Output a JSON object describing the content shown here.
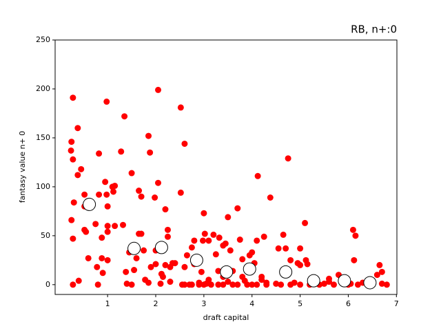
{
  "chart_data": {
    "type": "scatter",
    "title": "RB, n+:0",
    "xlabel": "draft capital",
    "ylabel": "fantasy value n+ 0",
    "xlim": [
      -0.09,
      7.01
    ],
    "ylim": [
      -10,
      250
    ],
    "xticks": [
      1,
      2,
      3,
      4,
      5,
      6,
      7
    ],
    "yticks": [
      0,
      50,
      100,
      150,
      200,
      250
    ],
    "series": [
      {
        "color": "#ff0000",
        "facecolor": "#ff0000",
        "x": [
          0.28,
          0.25,
          0.24,
          0.28,
          0.3,
          0.25,
          0.28,
          0.28,
          0.38,
          0.38,
          0.45,
          0.4,
          0.52,
          0.52,
          0.52,
          0.55,
          0.6,
          0.75,
          0.78,
          0.8,
          0.82,
          0.82,
          0.88,
          0.88,
          0.9,
          0.95,
          0.98,
          0.98,
          1.0,
          1.0,
          1.0,
          1.0,
          1.1,
          1.12,
          1.15,
          1.15,
          1.28,
          1.32,
          1.35,
          1.38,
          1.4,
          1.45,
          1.5,
          1.5,
          1.55,
          1.6,
          1.65,
          1.65,
          1.7,
          1.7,
          1.75,
          1.78,
          1.85,
          1.85,
          1.88,
          1.9,
          1.98,
          2.0,
          2.0,
          2.05,
          2.05,
          2.1,
          2.12,
          2.15,
          2.2,
          2.2,
          2.25,
          2.25,
          2.3,
          2.3,
          2.35,
          2.4,
          2.52,
          2.52,
          2.55,
          2.6,
          2.6,
          2.65,
          2.7,
          2.75,
          2.8,
          2.8,
          2.9,
          2.95,
          2.98,
          3.0,
          3.02,
          3.05,
          3.1,
          3.2,
          3.25,
          3.3,
          3.32,
          3.4,
          3.45,
          3.5,
          3.55,
          3.6,
          3.7,
          3.75,
          3.8,
          3.85,
          3.95,
          4.0,
          4.05,
          4.1,
          4.12,
          4.2,
          4.25,
          4.38,
          4.5,
          4.55,
          4.65,
          4.7,
          4.75,
          4.8,
          4.88,
          4.95,
          5.0,
          5.0,
          5.1,
          5.12,
          5.15,
          5.3,
          5.5,
          5.6,
          5.8,
          5.9,
          6.1,
          6.15,
          6.12,
          6.2,
          6.3,
          6.4,
          6.6,
          6.65,
          6.7,
          6.7,
          2.6,
          2.75,
          2.9,
          3.0,
          3.15,
          3.3,
          3.4,
          3.6,
          3.7,
          3.9,
          4.0,
          4.1,
          4.3,
          4.6,
          4.8,
          5.0,
          5.2,
          5.4,
          5.7,
          6.0,
          6.5,
          6.8,
          3.1,
          3.4,
          3.5,
          3.8,
          4.2,
          4.3,
          5.6,
          6.05
        ],
        "values": [
          191,
          146,
          137,
          128,
          84,
          66,
          47,
          0,
          160,
          112,
          118,
          4,
          92,
          80,
          56,
          54,
          27,
          62,
          18,
          0,
          134,
          92,
          48,
          27,
          12,
          105,
          187,
          92,
          80,
          60,
          54,
          25,
          100,
          95,
          101,
          60,
          136,
          61,
          172,
          13,
          1,
          33,
          114,
          0,
          15,
          27,
          96,
          52,
          90,
          52,
          35,
          5,
          152,
          2,
          135,
          18,
          89,
          21,
          35,
          104,
          199,
          1,
          11,
          8,
          77,
          20,
          56,
          49,
          3,
          18,
          22,
          22,
          181,
          94,
          0,
          144,
          18,
          30,
          0,
          38,
          45,
          21,
          2,
          13,
          45,
          73,
          52,
          1,
          45,
          51,
          31,
          14,
          48,
          40,
          42,
          69,
          35,
          14,
          78,
          46,
          26,
          4,
          30,
          33,
          22,
          45,
          111,
          8,
          49,
          89,
          1,
          37,
          51,
          37,
          129,
          25,
          2,
          22,
          20,
          37,
          63,
          25,
          21,
          4,
          1,
          3,
          10,
          1,
          56,
          50,
          25,
          0,
          2,
          4,
          10,
          20,
          13,
          1,
          0,
          0,
          0,
          0,
          0,
          0,
          0,
          0,
          0,
          0,
          0,
          0,
          0,
          0,
          0,
          0,
          0,
          0,
          0,
          0,
          0,
          0,
          5,
          8,
          3,
          8,
          5,
          2,
          6,
          1
        ]
      },
      {
        "color": "#000000",
        "facecolor": "#ffffff",
        "x": [
          0.62,
          1.55,
          2.12,
          2.85,
          3.47,
          3.95,
          4.7,
          5.28,
          5.92,
          6.45
        ],
        "values": [
          82,
          37,
          38,
          25,
          13,
          16,
          13,
          4,
          4,
          2
        ]
      }
    ]
  }
}
